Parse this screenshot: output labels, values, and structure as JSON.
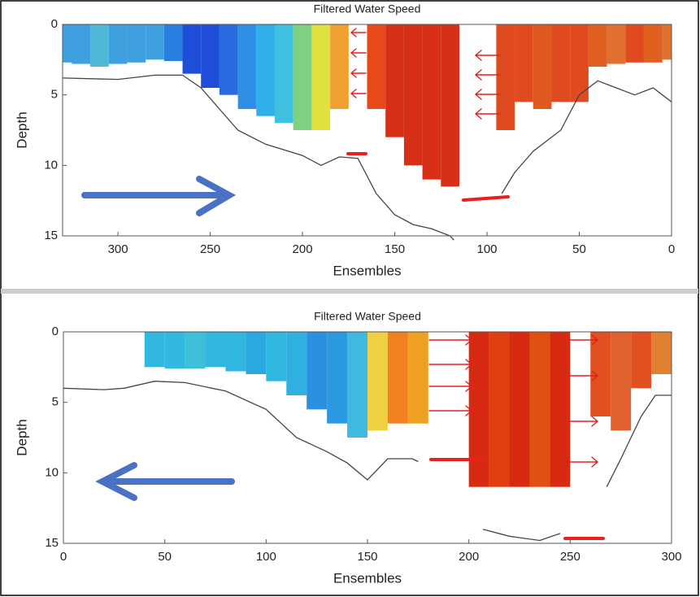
{
  "chart_data": [
    {
      "type": "heatmap",
      "title": "Filtered Water Speed",
      "xlabel": "Ensembles",
      "ylabel": "Depth",
      "xlim": [
        330,
        0
      ],
      "ylim": [
        0,
        15
      ],
      "xticks": [
        300,
        250,
        200,
        150,
        100,
        50,
        0
      ],
      "yticks": [
        0,
        5,
        10,
        15
      ],
      "columns": {
        "x": [
          330,
          320,
          310,
          300,
          290,
          280,
          270,
          260,
          250,
          240,
          230,
          220,
          210,
          200,
          190,
          180,
          160,
          150,
          140,
          130,
          120,
          90,
          80,
          70,
          60,
          50,
          40,
          30,
          20,
          10,
          0
        ],
        "values": [
          2.7,
          2.8,
          3,
          2.8,
          2.7,
          2.5,
          2.6,
          3.5,
          4.5,
          5,
          6,
          6.5,
          7,
          7.5,
          7.5,
          6,
          6,
          8,
          10,
          11,
          11.5,
          7.5,
          5.5,
          6,
          5.5,
          5.5,
          3,
          2.8,
          2.7,
          2.7,
          2.5
        ],
        "colors": [
          "#3fa0e0",
          "#3fa0e0",
          "#4fb8d8",
          "#3fa0e0",
          "#3fa0e0",
          "#3fa0e0",
          "#2a7ee0",
          "#1f4fd8",
          "#1f4fd8",
          "#2a6ae0",
          "#2f8ee6",
          "#2fb0e8",
          "#40c0e0",
          "#7fd080",
          "#e0e040",
          "#f0a030",
          "#e84a1c",
          "#d83018",
          "#d83018",
          "#d83018",
          "#d83018",
          "#e04a20",
          "#e04a20",
          "#e05a20",
          "#e04a20",
          "#e04a20",
          "#e06020",
          "#e07030",
          "#e04a20",
          "#e06020",
          "#e07030"
        ]
      },
      "series": [
        {
          "color": "#444",
          "x": [
            330,
            300,
            280,
            265,
            255,
            245,
            235,
            220,
            200,
            190,
            180,
            170,
            160,
            150,
            140,
            130,
            120,
            118,
            null,
            92,
            85,
            75,
            60,
            50,
            40,
            30,
            20,
            10,
            0
          ],
          "values": [
            3.8,
            3.9,
            3.6,
            3.6,
            4.5,
            6,
            7.5,
            8.5,
            9.3,
            10,
            9.4,
            9.5,
            12,
            13.5,
            14.2,
            14.5,
            15,
            15.3,
            null,
            12,
            10.5,
            9,
            7.5,
            5,
            4,
            4.5,
            5,
            4.5,
            5.5
          ]
        }
      ]
    },
    {
      "type": "heatmap",
      "title": "Filtered Water Speed",
      "xlabel": "Ensembles",
      "ylabel": "Depth",
      "xlim": [
        0,
        300
      ],
      "ylim": [
        0,
        15
      ],
      "xticks": [
        0,
        50,
        100,
        150,
        200,
        250,
        300
      ],
      "yticks": [
        0,
        5,
        10,
        15
      ],
      "columns": {
        "x": [
          45,
          55,
          65,
          75,
          85,
          95,
          105,
          115,
          125,
          135,
          145,
          155,
          165,
          175,
          205,
          215,
          225,
          235,
          245,
          265,
          275,
          285,
          295
        ],
        "values": [
          2.5,
          2.6,
          2.6,
          2.5,
          2.8,
          3,
          3.5,
          4.5,
          5.5,
          6.5,
          7.5,
          7,
          6.5,
          6.5,
          11,
          11,
          11,
          11,
          11,
          6,
          7,
          4,
          3
        ],
        "colors": [
          "#30b8e0",
          "#30b8e0",
          "#40c0d8",
          "#30b8e0",
          "#30b8e0",
          "#2aa8e0",
          "#30b8e0",
          "#30b0e0",
          "#2c90e0",
          "#2c98e0",
          "#40b8e0",
          "#f0d040",
          "#f08020",
          "#f0a020",
          "#d82a10",
          "#e04010",
          "#d82a10",
          "#e05010",
          "#d82a10",
          "#e05020",
          "#e06030",
          "#e05020",
          "#e08030"
        ]
      },
      "series": [
        {
          "color": "#444",
          "x": [
            0,
            20,
            30,
            45,
            60,
            80,
            100,
            115,
            130,
            140,
            150,
            160,
            172,
            175,
            null,
            207,
            220,
            235,
            245,
            null,
            268,
            275,
            285,
            292,
            300
          ],
          "values": [
            4,
            4.1,
            4,
            3.5,
            3.6,
            4.2,
            5.5,
            7.5,
            8.5,
            9.3,
            10.5,
            9,
            9,
            9.2,
            null,
            14,
            14.5,
            14.8,
            14.3,
            null,
            11,
            9,
            6,
            4.5,
            4.5
          ]
        }
      ]
    }
  ]
}
